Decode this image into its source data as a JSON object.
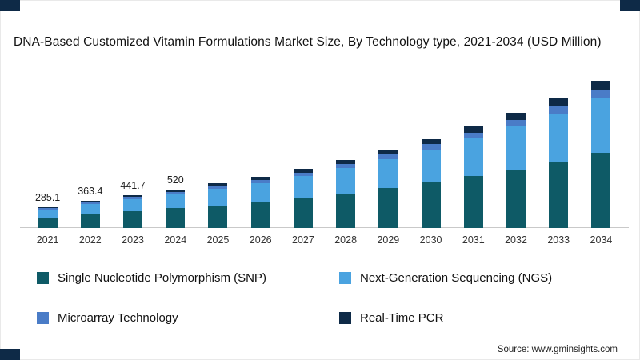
{
  "title": "DNA-Based Customized Vitamin Formulations Market Size, By Technology type, 2021-2034 (USD Million)",
  "source": "Source: www.gminsights.com",
  "accent": {
    "corner": "#0e2a47",
    "axis": "#c9c9c9"
  },
  "chart_data": {
    "type": "bar",
    "stacked": true,
    "title": "DNA-Based Customized Vitamin Formulations Market Size, By Technology type, 2021-2034 (USD Million)",
    "xlabel": "",
    "ylabel": "USD Million",
    "grid": false,
    "legend_position": "bottom",
    "ylim": [
      0,
      2100
    ],
    "categories": [
      "2021",
      "2022",
      "2023",
      "2024",
      "2025",
      "2026",
      "2027",
      "2028",
      "2029",
      "2030",
      "2031",
      "2032",
      "2033",
      "2034"
    ],
    "totals": [
      285.1,
      363.4,
      441.7,
      520,
      600,
      690,
      795,
      915,
      1050,
      1200,
      1365,
      1550,
      1755,
      1985
    ],
    "data_labels": [
      "285.1",
      "363.4",
      "441.7",
      "520",
      "",
      "",
      "",
      "",
      "",
      "",
      "",
      "",
      "",
      ""
    ],
    "series": [
      {
        "name": "Single Nucleotide Polymorphism (SNP)",
        "color": "#0e5a66",
        "values": [
          145.4,
          185.3,
          225.3,
          265.2,
          306.0,
          351.9,
          405.5,
          466.7,
          535.5,
          612.0,
          696.2,
          790.5,
          895.1,
          1012.4
        ]
      },
      {
        "name": "Next-Generation Sequencing (NGS)",
        "color": "#4aa3e0",
        "values": [
          105.5,
          134.5,
          163.4,
          192.4,
          222.0,
          255.3,
          294.2,
          338.6,
          388.5,
          444.0,
          505.1,
          573.5,
          649.4,
          734.5
        ]
      },
      {
        "name": "Microarray Technology",
        "color": "#4a7cc7",
        "values": [
          17.1,
          21.8,
          26.5,
          31.2,
          36.0,
          41.4,
          47.7,
          54.9,
          63.0,
          72.0,
          81.9,
          93.0,
          105.3,
          119.1
        ]
      },
      {
        "name": "Real-Time PCR",
        "color": "#0e2a47",
        "values": [
          17.1,
          21.8,
          26.5,
          31.2,
          36.0,
          41.4,
          47.7,
          54.9,
          63.0,
          72.0,
          81.9,
          93.0,
          105.3,
          119.1
        ]
      }
    ]
  },
  "legend": {
    "items": [
      {
        "label": "Single Nucleotide Polymorphism (SNP)",
        "color": "#0e5a66"
      },
      {
        "label": "Next-Generation Sequencing (NGS)",
        "color": "#4aa3e0"
      },
      {
        "label": "Microarray Technology",
        "color": "#4a7cc7"
      },
      {
        "label": "Real-Time PCR",
        "color": "#0e2a47"
      }
    ]
  }
}
